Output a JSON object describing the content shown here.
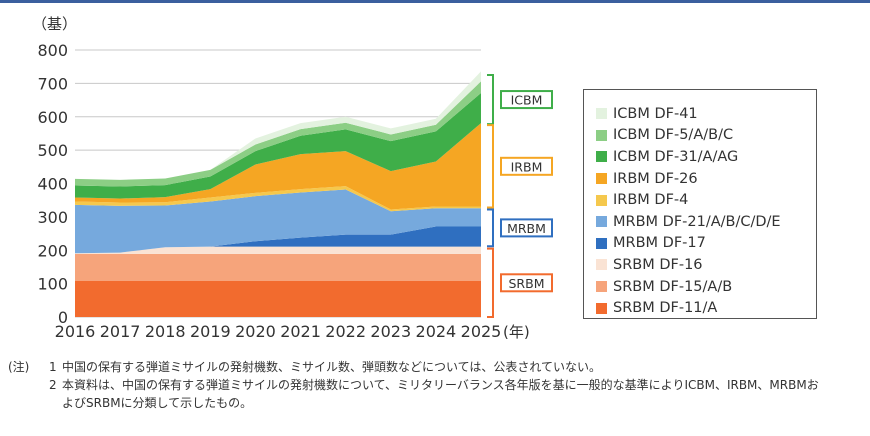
{
  "chart_data": {
    "type": "area",
    "stacked": true,
    "yunit": "（基）",
    "xunit": "(年)",
    "x": [
      2016,
      2017,
      2018,
      2019,
      2020,
      2021,
      2022,
      2023,
      2024,
      2025
    ],
    "ylim": [
      0,
      800
    ],
    "yticks": [
      0,
      100,
      200,
      300,
      400,
      500,
      600,
      700,
      800
    ],
    "grid": true,
    "legend_position": "right",
    "series": [
      {
        "name": "SRBM DF-11/A",
        "color": "#f26b2e",
        "values": [
          108,
          108,
          108,
          108,
          108,
          108,
          108,
          108,
          108,
          108
        ]
      },
      {
        "name": "SRBM DF-15/A/B",
        "color": "#f6a47b",
        "values": [
          81,
          81,
          81,
          81,
          81,
          81,
          81,
          81,
          81,
          81
        ]
      },
      {
        "name": "SRBM DF-16",
        "color": "#fae3d4",
        "values": [
          2,
          4,
          20,
          22,
          22,
          22,
          22,
          22,
          22,
          22
        ]
      },
      {
        "name": "MRBM DF-17",
        "color": "#2f6fc0",
        "values": [
          0,
          0,
          0,
          0,
          16,
          27,
          36,
          36,
          60,
          60
        ]
      },
      {
        "name": "MRBM DF-21/A/B/C/D/E",
        "color": "#76a9dd",
        "values": [
          145,
          140,
          125,
          135,
          135,
          135,
          135,
          70,
          55,
          55
        ]
      },
      {
        "name": "IRBM DF-4",
        "color": "#f5c84d",
        "values": [
          10,
          10,
          10,
          12,
          10,
          10,
          10,
          5,
          5,
          5
        ]
      },
      {
        "name": "IRBM DF-26",
        "color": "#f5a623",
        "values": [
          12,
          12,
          15,
          25,
          85,
          105,
          105,
          115,
          135,
          250
        ]
      },
      {
        "name": "ICBM DF-31/A/AG",
        "color": "#3fae49",
        "values": [
          36,
          36,
          36,
          38,
          40,
          55,
          65,
          90,
          90,
          90
        ]
      },
      {
        "name": "ICBM DF-5/A/B/C",
        "color": "#8cce85",
        "values": [
          20,
          20,
          20,
          20,
          20,
          20,
          20,
          20,
          20,
          35
        ]
      },
      {
        "name": "ICBM DF-41",
        "color": "#e3f2df",
        "values": [
          0,
          0,
          0,
          0,
          18,
          18,
          18,
          18,
          18,
          30
        ]
      }
    ],
    "groups": [
      {
        "label": "ICBM",
        "color": "#3fae49",
        "range": [
          578,
          725
        ]
      },
      {
        "label": "IRBM",
        "color": "#f5a623",
        "range": [
          328,
          575
        ]
      },
      {
        "label": "MRBM",
        "color": "#2f6fc0",
        "range": [
          212,
          322
        ]
      },
      {
        "label": "SRBM",
        "color": "#f26b2e",
        "range": [
          0,
          205
        ]
      }
    ]
  },
  "notes": {
    "prefix": "(注)",
    "items": [
      {
        "num": "1",
        "text": "中国の保有する弾道ミサイルの発射機数、ミサイル数、弾頭数などについては、公表されていない。"
      },
      {
        "num": "2",
        "text": "本資料は、中国の保有する弾道ミサイルの発射機数について、ミリタリーバランス各年版を基に一般的な基準によりICBM、IRBM、MRBMおよびSRBMに分類して示したもの。"
      }
    ]
  }
}
